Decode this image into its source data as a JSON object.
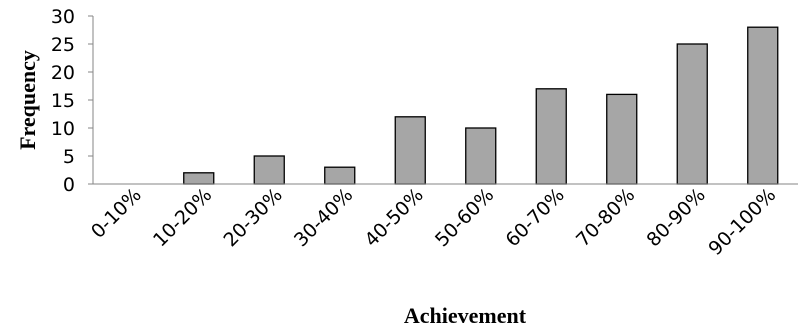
{
  "chart_data": {
    "type": "bar",
    "categories": [
      "0-10%",
      "10-20%",
      "20-30%",
      "30-40%",
      "40-50%",
      "50-60%",
      "60-70%",
      "70-80%",
      "80-90%",
      "90-100%"
    ],
    "values": [
      0,
      2,
      5,
      3,
      12,
      10,
      17,
      16,
      25,
      28
    ],
    "xlabel": "Achievement",
    "ylabel": "Frequency",
    "ylim": [
      0,
      30
    ],
    "yticks": [
      0,
      5,
      10,
      15,
      20,
      25,
      30
    ],
    "grid": false,
    "legend": "none",
    "colors": {
      "bar_fill": "#a6a6a6",
      "bar_stroke": "#000000",
      "axis": "#868686"
    }
  }
}
